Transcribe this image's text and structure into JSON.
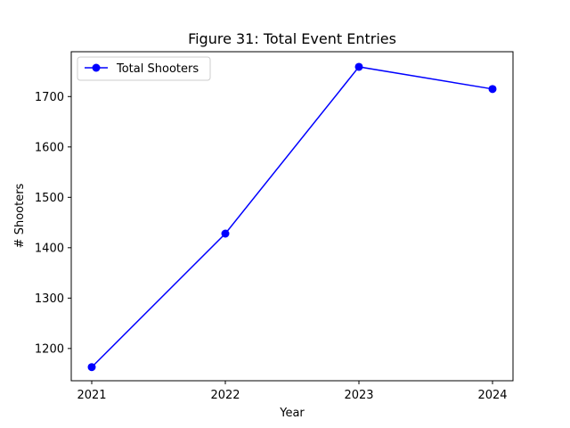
{
  "chart_data": {
    "type": "line",
    "title": "Figure 31: Total Event Entries",
    "xlabel": "Year",
    "ylabel": "# Shooters",
    "x": [
      "2021",
      "2022",
      "2023",
      "2024"
    ],
    "ylim": [
      1136,
      1789
    ],
    "yticks": [
      1200,
      1300,
      1400,
      1500,
      1600,
      1700
    ],
    "grid": false,
    "legend_position": "top-left",
    "series": [
      {
        "name": "Total Shooters",
        "color": "#0000ff",
        "marker": "circle",
        "values": [
          1163,
          1428,
          1759,
          1715
        ]
      }
    ]
  }
}
